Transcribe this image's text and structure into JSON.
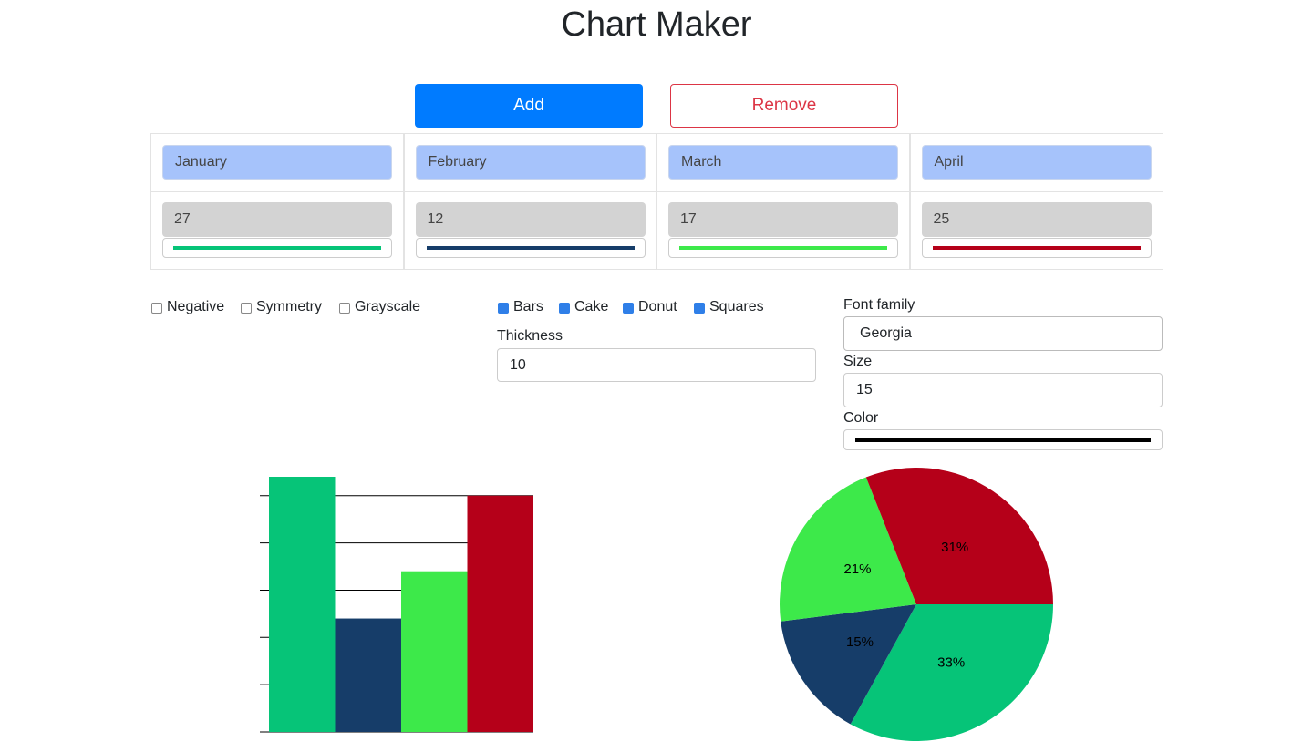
{
  "title": "Chart Maker",
  "buttons": {
    "add": "Add",
    "remove": "Remove"
  },
  "options": [
    {
      "label": "Negative",
      "checked": false
    },
    {
      "label": "Symmetry",
      "checked": false
    },
    {
      "label": "Grayscale",
      "checked": false
    }
  ],
  "chart_kinds": [
    {
      "label": "Bars",
      "checked": true
    },
    {
      "label": "Cake",
      "checked": true
    },
    {
      "label": "Donut",
      "checked": true
    },
    {
      "label": "Squares",
      "checked": true
    }
  ],
  "thickness": {
    "label": "Thickness",
    "value": 10
  },
  "font": {
    "family_label": "Font family",
    "family": "Georgia",
    "size_label": "Size",
    "size": 15,
    "color_label": "Color",
    "color": "#000000"
  },
  "chart_data": [
    {
      "type": "bar",
      "categories": [
        "January",
        "February",
        "March",
        "April"
      ],
      "values": [
        27,
        12,
        17,
        25
      ],
      "colors": [
        "#06c478",
        "#163d69",
        "#3de94a",
        "#b50019"
      ],
      "ylim": [
        0,
        27
      ],
      "yticks": [
        0,
        5,
        10,
        15,
        20,
        25
      ],
      "grid": true
    },
    {
      "type": "pie",
      "values": [
        33,
        15,
        21,
        31
      ],
      "value_labels": [
        "33%",
        "15%",
        "21%",
        "31%"
      ],
      "colors": [
        "#06c478",
        "#163d69",
        "#3de94a",
        "#b50019"
      ]
    }
  ]
}
